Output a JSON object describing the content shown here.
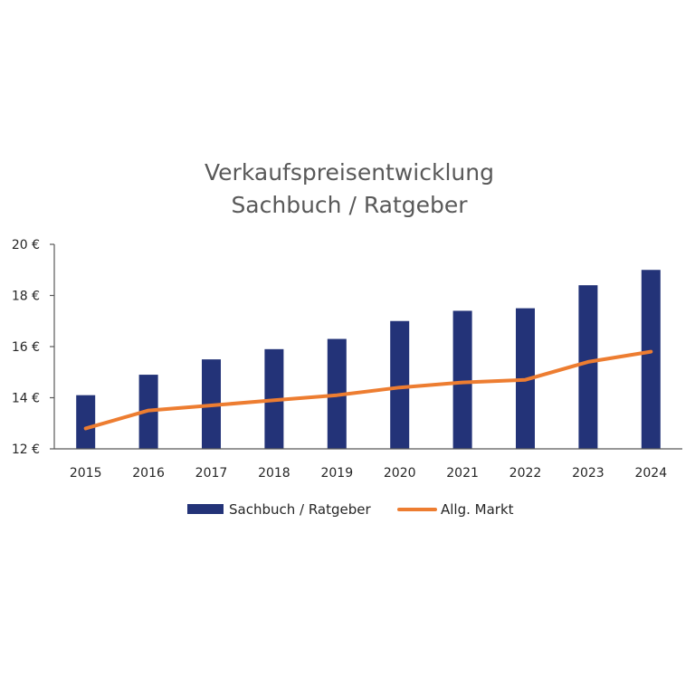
{
  "chart_data": {
    "type": "bar",
    "title": [
      "Verkaufspreisentwicklung",
      "Sachbuch / Ratgeber"
    ],
    "categories": [
      "2015",
      "2016",
      "2017",
      "2018",
      "2019",
      "2020",
      "2021",
      "2022",
      "2023",
      "2024"
    ],
    "series": [
      {
        "name": "Sachbuch / Ratgeber",
        "type": "bar",
        "color": "#233378",
        "values": [
          14.1,
          14.9,
          15.5,
          15.9,
          16.3,
          17.0,
          17.4,
          17.5,
          18.4,
          19.0
        ]
      },
      {
        "name": "Allg. Markt",
        "type": "line",
        "color": "#ED7D31",
        "values": [
          12.8,
          13.5,
          13.7,
          13.9,
          14.1,
          14.4,
          14.6,
          14.7,
          15.4,
          15.8
        ]
      }
    ],
    "ylim": [
      12,
      20
    ],
    "yticks": [
      12,
      14,
      16,
      18,
      20
    ],
    "ytick_labels": [
      "12 €",
      "14 €",
      "16 €",
      "18 €",
      "20 €"
    ],
    "xlabel": "",
    "ylabel": "",
    "grid": false,
    "legend_position": "bottom"
  }
}
